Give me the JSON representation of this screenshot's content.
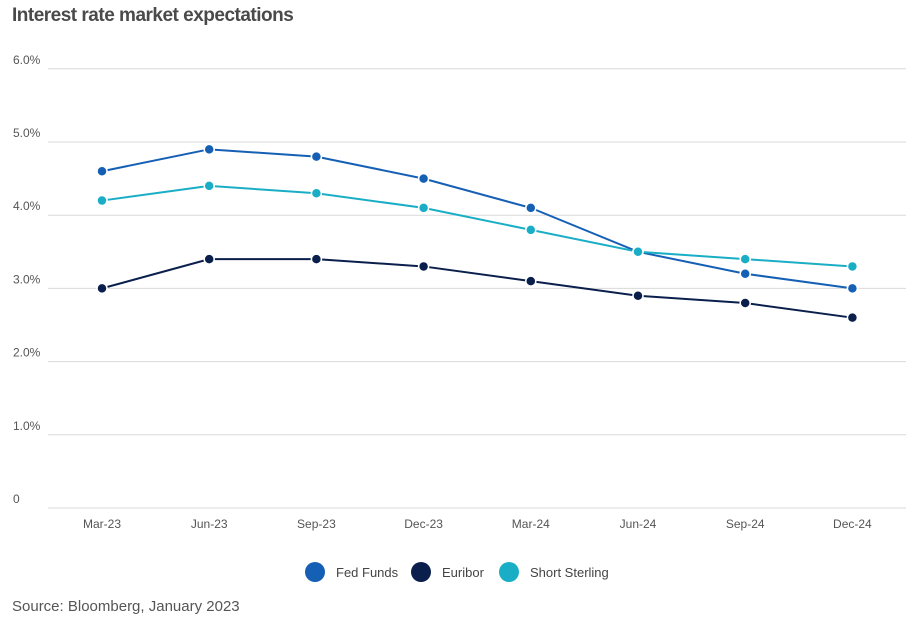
{
  "header": {
    "title": "Interest rate market expectations"
  },
  "footer": {
    "source": "Source: Bloomberg, January 2023"
  },
  "chart_data": {
    "type": "line",
    "title": "Interest rate market expectations",
    "xlabel": "",
    "ylabel": "",
    "categories": [
      "Mar-23",
      "Jun-23",
      "Sep-23",
      "Dec-23",
      "Mar-24",
      "Jun-24",
      "Sep-24",
      "Dec-24"
    ],
    "y_ticks": [
      "0",
      "1.0%",
      "2.0%",
      "3.0%",
      "4.0%",
      "5.0%",
      "6.0%"
    ],
    "ylim": [
      0,
      6
    ],
    "grid": true,
    "legend_position": "bottom",
    "series": [
      {
        "name": "Fed Funds",
        "color": "#1560b5",
        "values": [
          4.6,
          4.9,
          4.8,
          4.5,
          4.1,
          3.5,
          3.2,
          3.0
        ]
      },
      {
        "name": "Euribor",
        "color": "#0b1f4d",
        "values": [
          3.0,
          3.4,
          3.4,
          3.3,
          3.1,
          2.9,
          2.8,
          2.6
        ]
      },
      {
        "name": "Short Sterling",
        "color": "#1aaec6",
        "values": [
          4.2,
          4.4,
          4.3,
          4.1,
          3.8,
          3.5,
          3.4,
          3.3
        ]
      }
    ]
  }
}
